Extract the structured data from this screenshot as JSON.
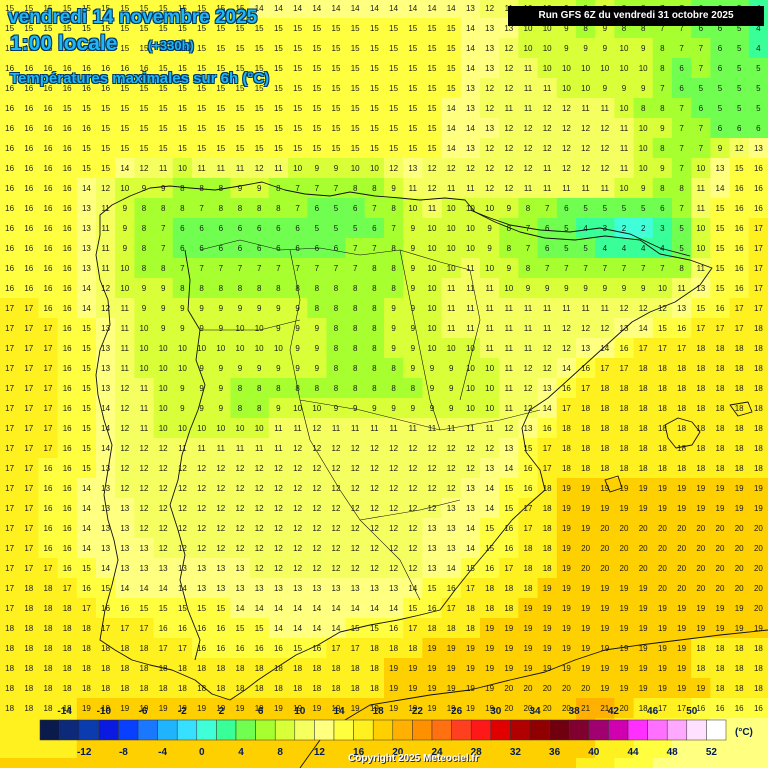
{
  "header": {
    "date": "vendredi 14 novembre 2025",
    "local_time": "1:00 locale",
    "offset": "(+330h)",
    "parameter": "Températures maximales sur 6h (°C)",
    "run": "Run GFS 6Z du vendredi 31 octobre 2025"
  },
  "footer": {
    "copyright": "Copyright 2025 Meteociel.fr"
  },
  "legend": {
    "unit": "(°C)",
    "top_labels": [
      "-14",
      "-10",
      "-6",
      "-2",
      "2",
      "6",
      "10",
      "14",
      "18",
      "22",
      "26",
      "30",
      "34",
      "38",
      "42",
      "46",
      "50"
    ],
    "bottom_labels": [
      "-12",
      "-8",
      "-4",
      "0",
      "4",
      "8",
      "12",
      "16",
      "20",
      "24",
      "28",
      "32",
      "36",
      "40",
      "44",
      "48",
      "52"
    ],
    "colors": [
      "#0a1a4a",
      "#0d2a7a",
      "#0a3cb0",
      "#0a1ae0",
      "#0840ff",
      "#1a78ff",
      "#20b4ff",
      "#38e0ff",
      "#40ffd8",
      "#38ff98",
      "#70ff50",
      "#a8ff30",
      "#d8ff38",
      "#f6ff60",
      "#ffff80",
      "#ffff40",
      "#fff020",
      "#ffd000",
      "#ffb000",
      "#ff9000",
      "#ff7010",
      "#ff4020",
      "#ff1818",
      "#e00000",
      "#b00000",
      "#900000",
      "#700010",
      "#800030",
      "#a00070",
      "#d000b0",
      "#ff30ff",
      "#ff70ff",
      "#ffa8ff",
      "#ffe0ff",
      "#ffffff"
    ]
  },
  "map": {
    "cell_values_rows": [
      "15 15 15 15 15 15 15 15 15 15 15 15 15 14 14 14 14 14 14 14 14 14 14 14 13 12 11 10 10 9 8 9 8 8 7 7 6 6 5 4",
      "15 15 15 15 15 15 15 15 15 15 15 15 15 15 15 15 15 15 15 15 15 15 15 15 14 13 13 10 10 9 8 9 8 8 7 7 6 6 5 4",
      "15 15 15 15 15 15 15 15 15 15 15 15 15 15 15 15 15 15 15 15 15 15 15 15 14 13 12 10 10 9 9 9 10 9 8 7 7 6 5 4",
      "16 16 16 16 16 16 16 16 15 15 15 15 15 15 15 15 15 15 15 15 15 15 15 15 14 13 12 11 10 10 10 10 10 10 8 6 7 6 5 5",
      "16 16 16 16 16 16 15 15 15 15 15 15 15 15 15 15 15 15 15 15 15 15 15 15 13 12 12 11 11 10 10 9 9 9 7 6 5 5 5 5",
      "16 16 16 15 15 15 15 15 15 15 15 15 15 15 15 15 15 15 15 15 15 15 15 14 13 12 11 11 12 12 11 11 10 8 8 7 6 5 5 5",
      "16 16 16 16 16 15 15 15 15 15 15 15 15 15 15 15 15 15 15 15 15 15 15 14 14 13 12 12 12 12 12 12 11 10 9 7 7 6 6 6",
      "16 16 16 16 15 15 15 15 15 15 15 15 15 15 15 15 15 15 15 15 15 15 15 14 13 12 12 12 12 12 12 12 11 10 8 7 7 9 12 13",
      "16 16 16 16 15 15 14 12 11 10 11 11 11 12 11 10 9 9 10 10 12 13 12 12 12 12 12 12 11 12 12 12 11 10 9 7 10 13 15 16",
      "16 16 16 16 14 12 10 9 9 8 8 8 9 9 8 7 7 7 8 8 9 11 12 11 11 12 12 11 11 11 11 11 10 9 8 8 11 14 16 16",
      "16 16 16 16 13 11 9 8 8 8 7 8 8 8 8 7 6 5 6 7 8 10 11 10 10 10 9 8 7 6 5 5 5 5 6 7 11 15 16 16",
      "16 16 16 16 13 11 9 8 7 6 6 6 6 6 6 6 5 5 5 6 7 9 10 10 10 9 8 7 6 5 4 3 2 2 3 5 10 15 16 17",
      "16 16 16 16 13 11 9 8 7 6 6 6 6 6 6 6 6 6 7 7 8 9 10 10 10 9 8 7 6 5 5 4 4 4 4 5 10 15 16 17",
      "16 16 16 16 13 11 10 8 8 7 7 7 7 7 7 7 7 7 7 8 8 9 10 10 11 10 9 8 7 7 7 7 7 7 7 8 11 15 16 17",
      "16 16 16 16 14 12 10 9 9 8 8 8 8 8 8 8 8 8 8 8 8 9 10 11 11 11 10 9 9 9 9 9 9 9 10 11 13 15 16 17",
      "17 17 16 16 14 12 11 9 9 9 9 9 9 9 9 9 8 8 8 8 9 9 10 11 11 11 11 11 11 11 11 11 12 12 12 13 15 16 17 17",
      "17 17 17 16 15 13 11 10 9 9 9 9 10 10 9 9 9 8 8 8 9 9 10 11 11 11 11 11 11 12 12 12 13 14 15 16 17 17 17 18",
      "17 17 17 16 15 13 11 10 10 10 10 10 10 10 10 9 9 8 8 8 9 9 10 10 10 11 11 11 12 12 13 14 16 17 17 17 18 18 18 18",
      "17 17 17 16 15 13 11 10 10 10 9 9 9 9 9 9 9 8 8 8 8 9 9 9 10 10 11 12 12 14 16 17 17 18 18 18 18 18 18 18",
      "17 17 17 16 15 13 12 11 10 9 9 9 8 8 8 8 8 8 8 8 8 8 9 9 10 10 11 12 13 16 17 18 18 18 18 18 18 18 18 18",
      "17 17 17 16 15 14 12 11 10 9 9 9 8 8 9 10 10 9 9 9 9 9 9 9 10 10 11 12 14 17 18 18 18 18 18 18 18 18 18 18",
      "17 17 17 16 15 14 12 11 10 10 10 10 10 10 11 11 12 11 11 11 11 11 11 11 11 11 12 13 16 18 18 18 18 18 18 18 18 18 18 18",
      "17 17 17 16 15 14 12 12 12 11 11 11 11 11 11 12 12 12 12 12 12 12 12 12 12 12 13 15 17 18 18 18 18 18 18 18 18 18 18 18",
      "17 17 16 16 15 13 12 12 12 12 12 12 12 12 12 12 12 12 12 12 12 12 12 12 12 13 14 16 17 18 18 18 18 18 18 18 18 18 18 18",
      "17 17 16 16 14 13 12 12 12 12 12 12 12 12 12 12 12 12 12 12 12 12 12 12 13 14 15 16 18 19 19 19 19 19 19 19 19 19 19 19",
      "17 17 16 16 14 13 13 12 12 12 12 12 12 12 12 12 12 12 12 12 12 12 12 13 13 14 15 17 18 19 19 19 19 19 19 19 19 19 19 19",
      "17 17 16 16 14 13 13 12 12 12 12 12 12 12 12 12 12 12 12 12 12 12 13 13 14 15 16 17 18 19 19 20 20 20 20 20 20 20 20 20",
      "17 17 16 16 14 13 13 13 12 12 12 12 12 12 12 12 12 12 12 12 12 12 13 13 14 15 16 18 18 19 20 20 20 20 20 20 20 20 20 20",
      "17 17 17 16 15 14 13 13 13 13 13 13 13 12 12 12 12 12 12 12 12 12 13 14 15 16 17 18 18 19 20 20 20 20 20 20 20 20 20 20",
      "17 18 18 17 16 15 14 14 14 14 13 13 13 13 13 13 13 13 13 13 13 14 15 16 17 18 18 18 19 19 19 19 19 19 20 20 20 20 20 20",
      "17 18 18 18 17 16 16 15 15 15 15 15 14 14 14 14 14 14 14 14 14 15 16 17 18 18 18 19 19 19 19 19 19 19 19 19 19 19 19 20",
      "18 18 18 18 18 17 17 17 16 16 16 16 15 15 14 14 14 14 15 15 16 17 18 18 18 19 19 19 19 19 19 19 19 19 19 19 19 19 19 19",
      "18 18 18 18 18 18 18 18 17 17 16 16 16 16 16 15 16 17 17 18 18 18 19 19 19 19 19 19 19 19 19 19 19 19 19 19 18 18 18 18",
      "18 18 18 18 18 18 18 18 18 18 18 18 18 18 18 18 18 18 18 18 19 19 19 19 19 19 19 19 19 19 19 19 19 19 19 19 18 18 18 18",
      "18 18 18 18 18 18 18 18 18 18 18 18 18 18 18 18 18 18 18 18 19 19 19 19 19 19 20 20 20 20 20 19 19 19 19 19 19 18 18 18",
      "18 18 18 18 19 19 19 19 19 19 19 19 19 19 19 19 19 19 19 19 19 19 19 19 19 19 20 20 20 20 21 21 20 18 17 17 16 16 16 16",
      "18 18 18 18 19 19 19 19 19 19 19 19 19 19 19 19 19 19 19 19 19 19 19 19 19 19 20 20 20 20 21 20 18 17 16 15 15 14 14 14",
      "18 18 18 18 19 19 19 19 19 19 19 19 19 19 19 19 19 19 19 19 19 19 19 19 19 19 19 20 20 20 19 18 17 16 15 14 14 14 14 14",
      "19 19 19 19 19 19 19 19 19 19 19 19 19 19 19 19 19 19 19 19 19 19 19 19 19 19 19 19 19 19 18 17 16 15 14 14 14 14 14 14"
    ]
  }
}
